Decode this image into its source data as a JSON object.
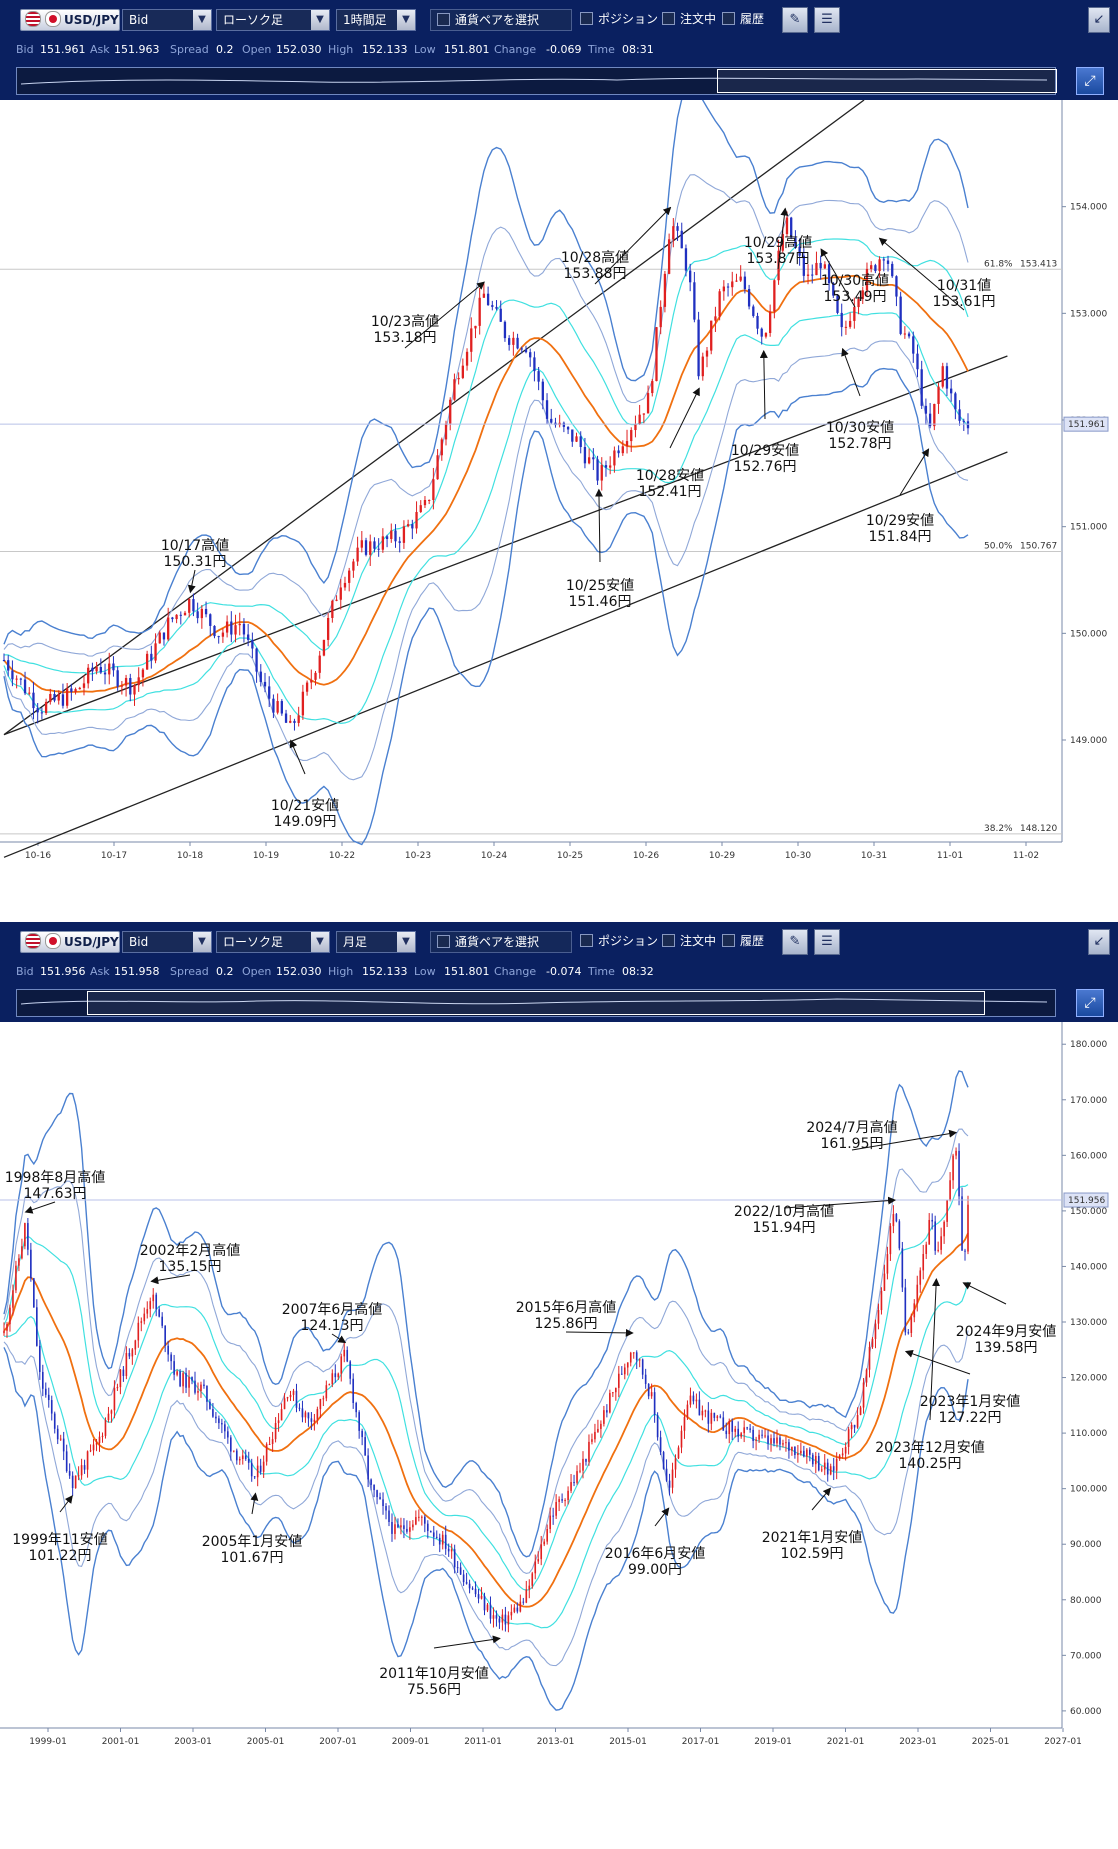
{
  "colors": {
    "toolbar_bg": "#0a2060",
    "up_candle": "#e02020",
    "down_candle": "#2030c0",
    "ma": "#f07010",
    "band1": "#40e0e0",
    "band2": "#90a8d8",
    "band3": "#4a80d0",
    "channel": "#222222"
  },
  "panels": [
    {
      "id": "hourly",
      "toolbar": {
        "pair": "USD/JPY",
        "price_type": "Bid",
        "chart_type": "ローソク足",
        "timeframe": "1時間足",
        "pair_select": "通貨ペアを選択",
        "position": "ポジション",
        "orders": "注文中",
        "history": "履歴"
      },
      "info": {
        "bid_label": "Bid",
        "bid": "151.961",
        "ask_label": "Ask",
        "ask": "151.963",
        "spread_label": "Spread",
        "spread": "0.2",
        "open_label": "Open",
        "open": "152.030",
        "high_label": "High",
        "high": "152.133",
        "low_label": "Low",
        "low": "151.801",
        "change_label": "Change",
        "change": "-0.069",
        "time_label": "Time",
        "time": "08:31"
      },
      "chart_data": {
        "type": "candlestick",
        "ylim": [
          148.1,
          155.0
        ],
        "y_ticks": [
          "154.000",
          "153.000",
          "152.000",
          "151.000",
          "150.000",
          "149.000"
        ],
        "x_ticks": [
          "10-16",
          "10-17",
          "10-18",
          "10-19",
          "10-22",
          "10-23",
          "10-24",
          "10-25",
          "10-26",
          "10-29",
          "10-30",
          "10-31",
          "11-01",
          "11-02"
        ],
        "current_price": "151.961",
        "fibonacci": [
          {
            "label": "61.8%",
            "value": "153.413"
          },
          {
            "label": "50.0%",
            "value": "150.767"
          },
          {
            "label": "38.2%",
            "value": "148.120"
          }
        ],
        "price_path": [
          [
            0,
            149.75
          ],
          [
            0.5,
            149.3
          ],
          [
            1,
            149.45
          ],
          [
            1.3,
            149.7
          ],
          [
            1.8,
            149.5
          ],
          [
            2.3,
            150.1
          ],
          [
            2.6,
            150.31
          ],
          [
            3,
            150.0
          ],
          [
            3.3,
            150.1
          ],
          [
            3.6,
            149.5
          ],
          [
            4.0,
            149.09
          ],
          [
            4.3,
            149.6
          ],
          [
            4.7,
            150.5
          ],
          [
            5.0,
            150.8
          ],
          [
            5.5,
            150.9
          ],
          [
            5.9,
            151.2
          ],
          [
            6.3,
            152.4
          ],
          [
            6.7,
            153.18
          ],
          [
            7.0,
            152.8
          ],
          [
            7.3,
            152.7
          ],
          [
            7.6,
            152.0
          ],
          [
            8.0,
            151.8
          ],
          [
            8.3,
            151.46
          ],
          [
            8.7,
            151.9
          ],
          [
            9.0,
            152.2
          ],
          [
            9.3,
            153.88
          ],
          [
            9.55,
            153.4
          ],
          [
            9.7,
            152.41
          ],
          [
            10.0,
            153.2
          ],
          [
            10.3,
            153.3
          ],
          [
            10.6,
            152.76
          ],
          [
            10.9,
            153.87
          ],
          [
            11.2,
            153.3
          ],
          [
            11.4,
            153.5
          ],
          [
            11.7,
            152.78
          ],
          [
            11.9,
            153.2
          ],
          [
            12.3,
            153.61
          ],
          [
            12.5,
            152.9
          ],
          [
            12.7,
            152.6
          ],
          [
            12.9,
            151.84
          ],
          [
            13.1,
            152.5
          ],
          [
            13.3,
            152.0
          ],
          [
            13.45,
            151.96
          ]
        ],
        "channel_lines": [
          [
            [
              0,
              149.05
            ],
            [
              12.0,
              155.0
            ]
          ],
          [
            [
              0,
              149.05
            ],
            [
              14.0,
              152.6
            ]
          ],
          [
            [
              0,
              147.9
            ],
            [
              14.0,
              151.7
            ]
          ]
        ],
        "annotations": [
          {
            "label": "10/17高値",
            "value": "150.31円",
            "x": 2.6,
            "y": 150.31
          },
          {
            "label": "10/21安値",
            "value": "149.09円",
            "x": 4.0,
            "y": 149.09
          },
          {
            "label": "10/23高値",
            "value": "153.18円",
            "x": 6.7,
            "y": 153.18
          },
          {
            "label": "10/25安値",
            "value": "151.46円",
            "x": 8.3,
            "y": 151.46
          },
          {
            "label": "10/28高値",
            "value": "153.88円",
            "x": 9.3,
            "y": 153.88
          },
          {
            "label": "10/28安値",
            "value": "152.41円",
            "x": 9.7,
            "y": 152.41
          },
          {
            "label": "10/29高値",
            "value": "153.87円",
            "x": 10.9,
            "y": 153.87
          },
          {
            "label": "10/29安値",
            "value": "152.76円",
            "x": 10.6,
            "y": 152.76
          },
          {
            "label": "10/30高値",
            "value": "153.49円",
            "x": 11.4,
            "y": 153.49
          },
          {
            "label": "10/30安値",
            "value": "152.78円",
            "x": 11.7,
            "y": 152.78
          },
          {
            "label": "10/31値",
            "value": "153.61円",
            "x": 12.3,
            "y": 153.61
          },
          {
            "label": "10/29安値",
            "value": "151.84円",
            "x": 12.9,
            "y": 151.84
          }
        ]
      }
    },
    {
      "id": "monthly",
      "toolbar": {
        "pair": "USD/JPY",
        "price_type": "Bid",
        "chart_type": "ローソク足",
        "timeframe": "月足",
        "pair_select": "通貨ペアを選択",
        "position": "ポジション",
        "orders": "注文中",
        "history": "履歴"
      },
      "info": {
        "bid_label": "Bid",
        "bid": "151.956",
        "ask_label": "Ask",
        "ask": "151.958",
        "spread_label": "Spread",
        "spread": "0.2",
        "open_label": "Open",
        "open": "152.030",
        "high_label": "High",
        "high": "152.133",
        "low_label": "Low",
        "low": "151.801",
        "change_label": "Change",
        "change": "-0.074",
        "time_label": "Time",
        "time": "08:32"
      },
      "chart_data": {
        "type": "candlestick",
        "ylim": [
          58,
          184
        ],
        "y_ticks": [
          "180.000",
          "170.000",
          "160.000",
          "150.000",
          "140.000",
          "130.000",
          "120.000",
          "110.000",
          "100.000",
          "90.000",
          "80.000",
          "70.000",
          "60.000"
        ],
        "x_ticks": [
          "1999-01",
          "2001-01",
          "2003-01",
          "2005-01",
          "2007-01",
          "2009-01",
          "2011-01",
          "2013-01",
          "2015-01",
          "2017-01",
          "2019-01",
          "2021-01",
          "2023-01",
          "2025-01",
          "2027-01"
        ],
        "current_price": "151.956",
        "price_path": [
          [
            1998.0,
            128
          ],
          [
            1998.6,
            147.63
          ],
          [
            1999.0,
            120
          ],
          [
            1999.9,
            101.22
          ],
          [
            2000.6,
            108
          ],
          [
            2001.5,
            125
          ],
          [
            2002.1,
            135.15
          ],
          [
            2002.8,
            120
          ],
          [
            2003.5,
            118
          ],
          [
            2004.3,
            108
          ],
          [
            2005.0,
            101.67
          ],
          [
            2005.9,
            118
          ],
          [
            2006.5,
            112
          ],
          [
            2007.5,
            124.13
          ],
          [
            2008.2,
            100
          ],
          [
            2008.9,
            92
          ],
          [
            2009.5,
            95
          ],
          [
            2010.3,
            90
          ],
          [
            2011.0,
            82
          ],
          [
            2011.8,
            75.56
          ],
          [
            2012.5,
            80
          ],
          [
            2013.2,
            95
          ],
          [
            2014.0,
            103
          ],
          [
            2014.8,
            115
          ],
          [
            2015.5,
            125.86
          ],
          [
            2016.0,
            117
          ],
          [
            2016.5,
            99.0
          ],
          [
            2017.0,
            116
          ],
          [
            2017.8,
            112
          ],
          [
            2018.5,
            110
          ],
          [
            2019.5,
            108
          ],
          [
            2020.3,
            107
          ],
          [
            2021.0,
            102.59
          ],
          [
            2021.8,
            114
          ],
          [
            2022.4,
            135
          ],
          [
            2022.8,
            151.94
          ],
          [
            2023.1,
            127.22
          ],
          [
            2023.8,
            149
          ],
          [
            2023.95,
            140.25
          ],
          [
            2024.5,
            161.95
          ],
          [
            2024.7,
            139.58
          ],
          [
            2024.83,
            151.96
          ]
        ],
        "annotations": [
          {
            "label": "1998年8月高値",
            "value": "147.63円",
            "x": 1998.6,
            "y": 147.63
          },
          {
            "label": "1999年11安値",
            "value": "101.22円",
            "x": 1999.9,
            "y": 101.22
          },
          {
            "label": "2002年2月高値",
            "value": "135.15円",
            "x": 2002.1,
            "y": 135.15
          },
          {
            "label": "2005年1月安値",
            "value": "101.67円",
            "x": 2005.0,
            "y": 101.67
          },
          {
            "label": "2007年6月高値",
            "value": "124.13円",
            "x": 2007.5,
            "y": 124.13
          },
          {
            "label": "2011年10月安値",
            "value": "75.56円",
            "x": 2011.8,
            "y": 75.56
          },
          {
            "label": "2015年6月高値",
            "value": "125.86円",
            "x": 2015.5,
            "y": 125.86
          },
          {
            "label": "2016年6月安値",
            "value": "99.00円",
            "x": 2016.5,
            "y": 99.0
          },
          {
            "label": "2021年1月安値",
            "value": "102.59円",
            "x": 2021.0,
            "y": 102.59
          },
          {
            "label": "2022/10月高値",
            "value": "151.94円",
            "x": 2022.8,
            "y": 151.94
          },
          {
            "label": "2023年12月安値",
            "value": "140.25円",
            "x": 2023.95,
            "y": 140.25
          },
          {
            "label": "2023年1月安値",
            "value": "127.22円",
            "x": 2023.1,
            "y": 127.22
          },
          {
            "label": "2024/7月高値",
            "value": "161.95円",
            "x": 2024.5,
            "y": 161.95
          },
          {
            "label": "2024年9月安値",
            "value": "139.58円",
            "x": 2024.7,
            "y": 139.58
          }
        ]
      }
    }
  ]
}
